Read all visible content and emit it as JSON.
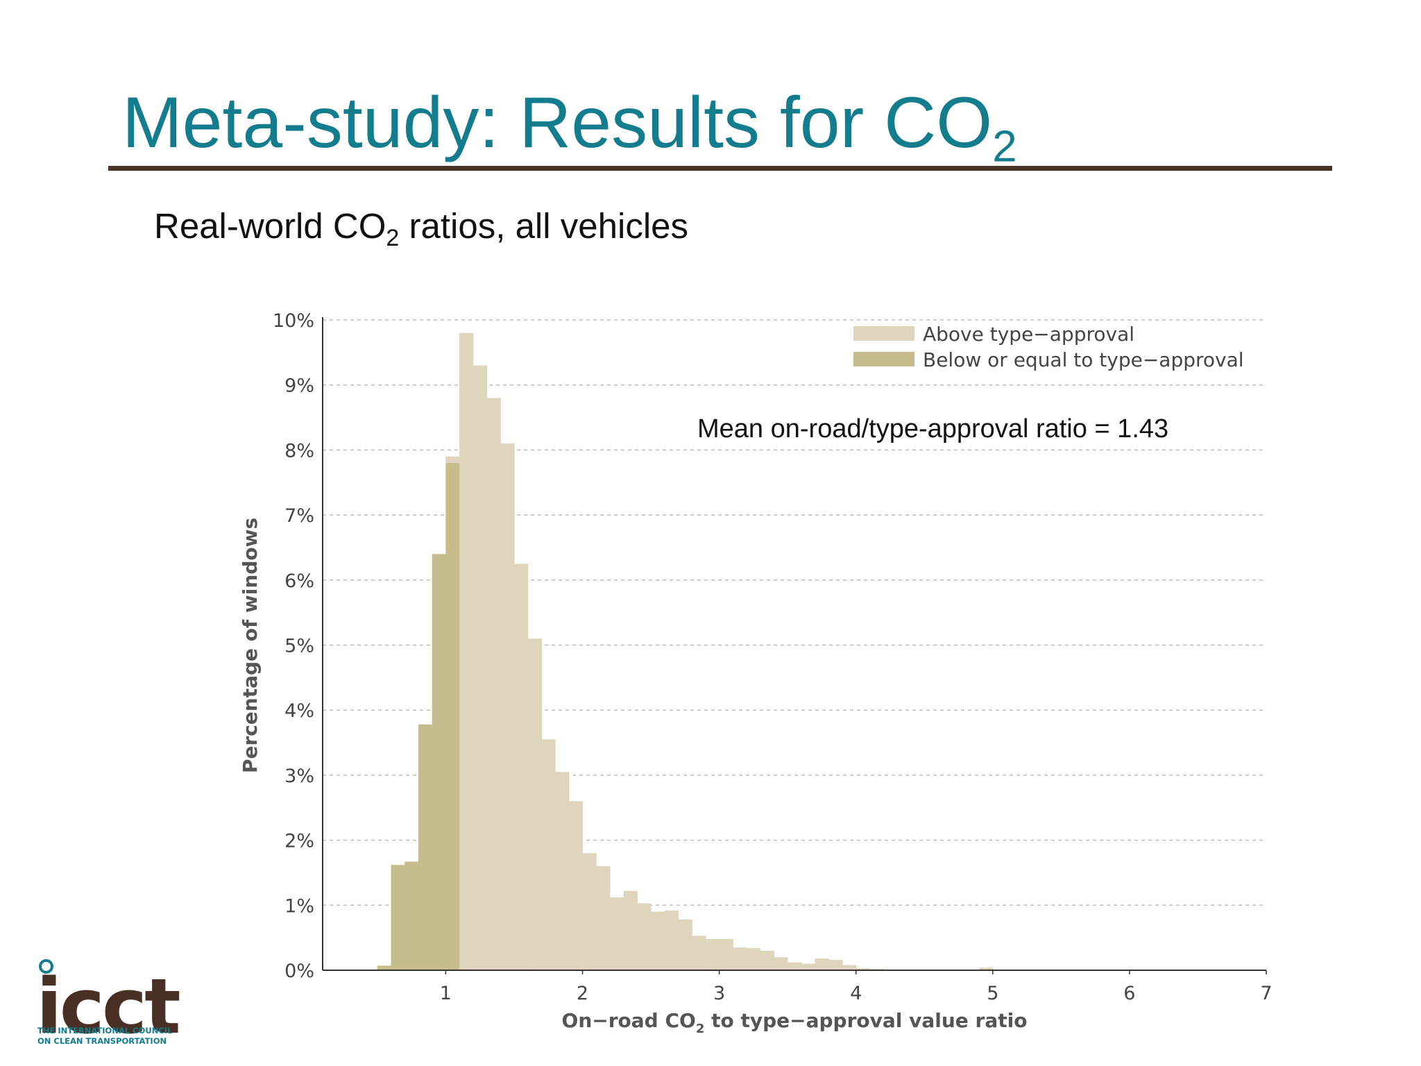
{
  "slide": {
    "title_main": "Meta-study: Results for CO",
    "title_sub": "2",
    "subtitle_pre": "Real-world CO",
    "subtitle_sub": "2",
    "subtitle_post": " ratios, all vehicles",
    "annotation": "Mean on-road/type-approval ratio = 1.43"
  },
  "logo": {
    "word": "icct",
    "line1": "THE INTERNATIONAL COUNCIL",
    "line2": "ON CLEAN TRANSPORTATION"
  },
  "colors": {
    "title": "#137d8e",
    "rule": "#4a3426",
    "above": "#ded5bc",
    "below": "#c6bc8c",
    "axis_text": "#444444",
    "grid": "#bdbdbd"
  },
  "chart_data": {
    "type": "bar",
    "subtype": "histogram",
    "bin_width": 0.1,
    "threshold": 1.0,
    "xlim": [
      0.1,
      7
    ],
    "ylim": [
      0,
      10
    ],
    "xticks": [
      1,
      2,
      3,
      4,
      5,
      6,
      7
    ],
    "xtick_labels": [
      "1",
      "2",
      "3",
      "4",
      "5",
      "6",
      "7"
    ],
    "yticks": [
      0,
      1,
      2,
      3,
      4,
      5,
      6,
      7,
      8,
      9,
      10
    ],
    "ytick_labels": [
      "0%",
      "1%",
      "2%",
      "3%",
      "4%",
      "5%",
      "6%",
      "7%",
      "8%",
      "9%",
      "10%"
    ],
    "xlabel_pre": "On−road CO",
    "xlabel_sub": "2",
    "xlabel_post": " to type−approval value ratio",
    "ylabel": "Percentage of windows",
    "grid": true,
    "legend_position": "top-right",
    "series": [
      {
        "name": "Above type−approval",
        "key": "above",
        "bin_starts": [
          1.0,
          1.1,
          1.2,
          1.3,
          1.4,
          1.5,
          1.6,
          1.7,
          1.8,
          1.9,
          2.0,
          2.1,
          2.2,
          2.3,
          2.4,
          2.5,
          2.6,
          2.7,
          2.8,
          2.9,
          3.0,
          3.1,
          3.2,
          3.3,
          3.4,
          3.5,
          3.6,
          3.7,
          3.8,
          3.9,
          4.0,
          4.1,
          4.2,
          4.9
        ],
        "values": [
          7.9,
          9.8,
          9.3,
          8.8,
          8.1,
          6.25,
          5.1,
          3.55,
          3.05,
          2.6,
          1.8,
          1.6,
          1.12,
          1.22,
          1.03,
          0.9,
          0.92,
          0.78,
          0.53,
          0.48,
          0.48,
          0.35,
          0.34,
          0.3,
          0.2,
          0.12,
          0.1,
          0.18,
          0.16,
          0.08,
          0.03,
          0.02,
          0.01,
          0.04
        ]
      },
      {
        "name": "Below or equal to type−approval",
        "key": "below",
        "bin_starts": [
          0.5,
          0.6,
          0.7,
          0.8,
          0.9
        ],
        "values": [
          0.07,
          1.62,
          1.67,
          3.78,
          6.4
        ]
      }
    ],
    "extra_below_bin": {
      "bin_start": 0.9,
      "value": 7.8,
      "width": 0.1,
      "offset": 0.1
    }
  }
}
